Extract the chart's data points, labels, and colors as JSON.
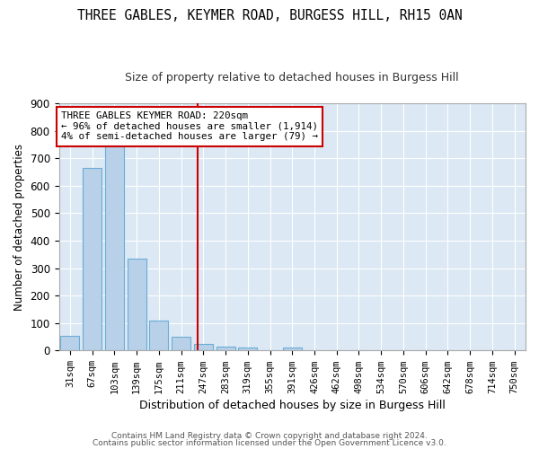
{
  "title": "THREE GABLES, KEYMER ROAD, BURGESS HILL, RH15 0AN",
  "subtitle": "Size of property relative to detached houses in Burgess Hill",
  "xlabel": "Distribution of detached houses by size in Burgess Hill",
  "ylabel": "Number of detached properties",
  "bar_labels": [
    "31sqm",
    "67sqm",
    "103sqm",
    "139sqm",
    "175sqm",
    "211sqm",
    "247sqm",
    "283sqm",
    "319sqm",
    "355sqm",
    "391sqm",
    "426sqm",
    "462sqm",
    "498sqm",
    "534sqm",
    "570sqm",
    "606sqm",
    "642sqm",
    "678sqm",
    "714sqm",
    "750sqm"
  ],
  "bar_values": [
    55,
    665,
    750,
    335,
    110,
    50,
    25,
    15,
    10,
    0,
    10,
    0,
    0,
    0,
    0,
    0,
    0,
    0,
    0,
    0,
    0
  ],
  "bar_color": "#b8d0e8",
  "bar_edgecolor": "#6badd6",
  "vline_x": 5.75,
  "vline_color": "#cc0000",
  "annotation_text": "THREE GABLES KEYMER ROAD: 220sqm\n← 96% of detached houses are smaller (1,914)\n4% of semi-detached houses are larger (79) →",
  "annotation_box_color": "#cc0000",
  "ylim": [
    0,
    900
  ],
  "yticks": [
    0,
    100,
    200,
    300,
    400,
    500,
    600,
    700,
    800,
    900
  ],
  "footer1": "Contains HM Land Registry data © Crown copyright and database right 2024.",
  "footer2": "Contains public sector information licensed under the Open Government Licence v3.0.",
  "bg_color": "#dce8f4",
  "grid_color": "#ffffff",
  "title_fontsize": 10.5,
  "subtitle_fontsize": 9
}
